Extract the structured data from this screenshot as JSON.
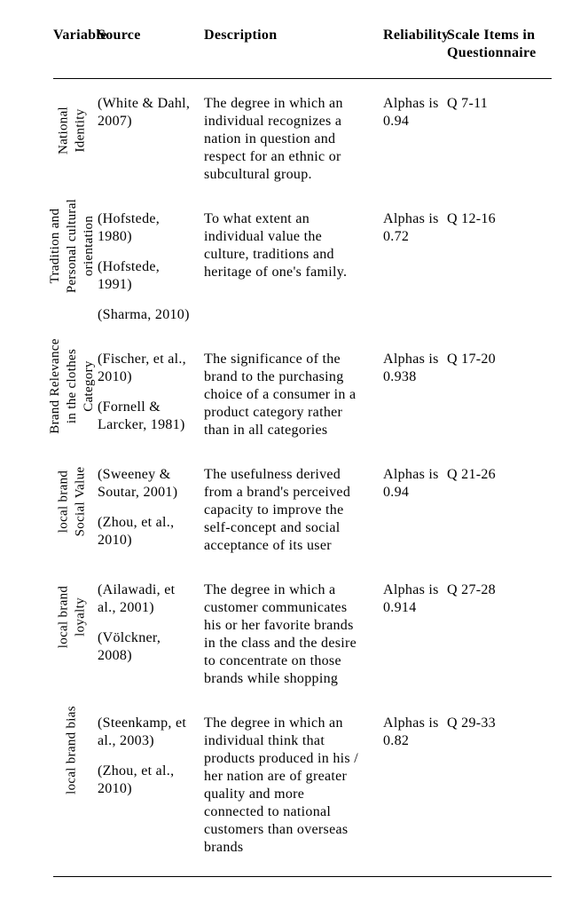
{
  "table": {
    "headers": {
      "variable": "Variable",
      "source": "Source",
      "description": "Description",
      "reliability": "Reliability",
      "items": "Scale Items in Questionnaire"
    },
    "rows": [
      {
        "variable_lines": [
          "National",
          "Identity"
        ],
        "sources": [
          "(White & Dahl, 2007)"
        ],
        "description": "The degree in which an individual recognizes a nation in question and respect for an ethnic or subcultural group.",
        "reliability": "Alphas is 0.94",
        "items": "Q 7-11",
        "rot_width": 100
      },
      {
        "variable_lines": [
          "Tradition and",
          "Personal cultural",
          "orientation"
        ],
        "sources": [
          "(Hofstede, 1980)",
          "(Hofstede, 1991)",
          "(Sharma, 2010)"
        ],
        "description": "To what extent an individual value the culture, traditions and heritage of one's family.",
        "reliability": "Alphas is 0.72",
        "items": "Q 12-16",
        "rot_width": 140
      },
      {
        "variable_lines": [
          "Brand Relevance",
          "in the clothes",
          "Category"
        ],
        "sources": [
          "(Fischer, et al., 2010)",
          "(Fornell & Larcker, 1981)"
        ],
        "description": "The significance of the brand to the purchasing choice of a consumer in a product category rather than in all categories",
        "reliability": "Alphas is 0.938",
        "items": "Q 17-20",
        "rot_width": 130
      },
      {
        "variable_lines": [
          "local brand",
          "Social Value"
        ],
        "sources": [
          "(Sweeney & Soutar, 2001)",
          "(Zhou, et al., 2010)"
        ],
        "description": "The usefulness derived from a brand's perceived capacity to improve the self-concept and social acceptance of its user",
        "reliability": "Alphas is 0.94",
        "items": "Q 21-26",
        "rot_width": 120
      },
      {
        "variable_lines": [
          "local brand",
          "loyalty"
        ],
        "sources": [
          "(Ailawadi, et al., 2001)",
          "(Völckner, 2008)"
        ],
        "description": "The degree in which a customer communicates his or her favorite brands in the class and the desire to concentrate on those brands while shopping",
        "reliability": "Alphas is 0.914",
        "items": "Q 27-28",
        "rot_width": 140
      },
      {
        "variable_lines": [
          "local brand bias"
        ],
        "sources": [
          "(Steenkamp, et al., 2003)",
          "(Zhou, et al., 2010)"
        ],
        "description": "The degree in which an individual think that products produced in his / her nation are of greater quality and more connected to national customers than overseas brands",
        "reliability": "Alphas is 0.82",
        "items": "Q 29-33",
        "rot_width": 170
      }
    ]
  }
}
